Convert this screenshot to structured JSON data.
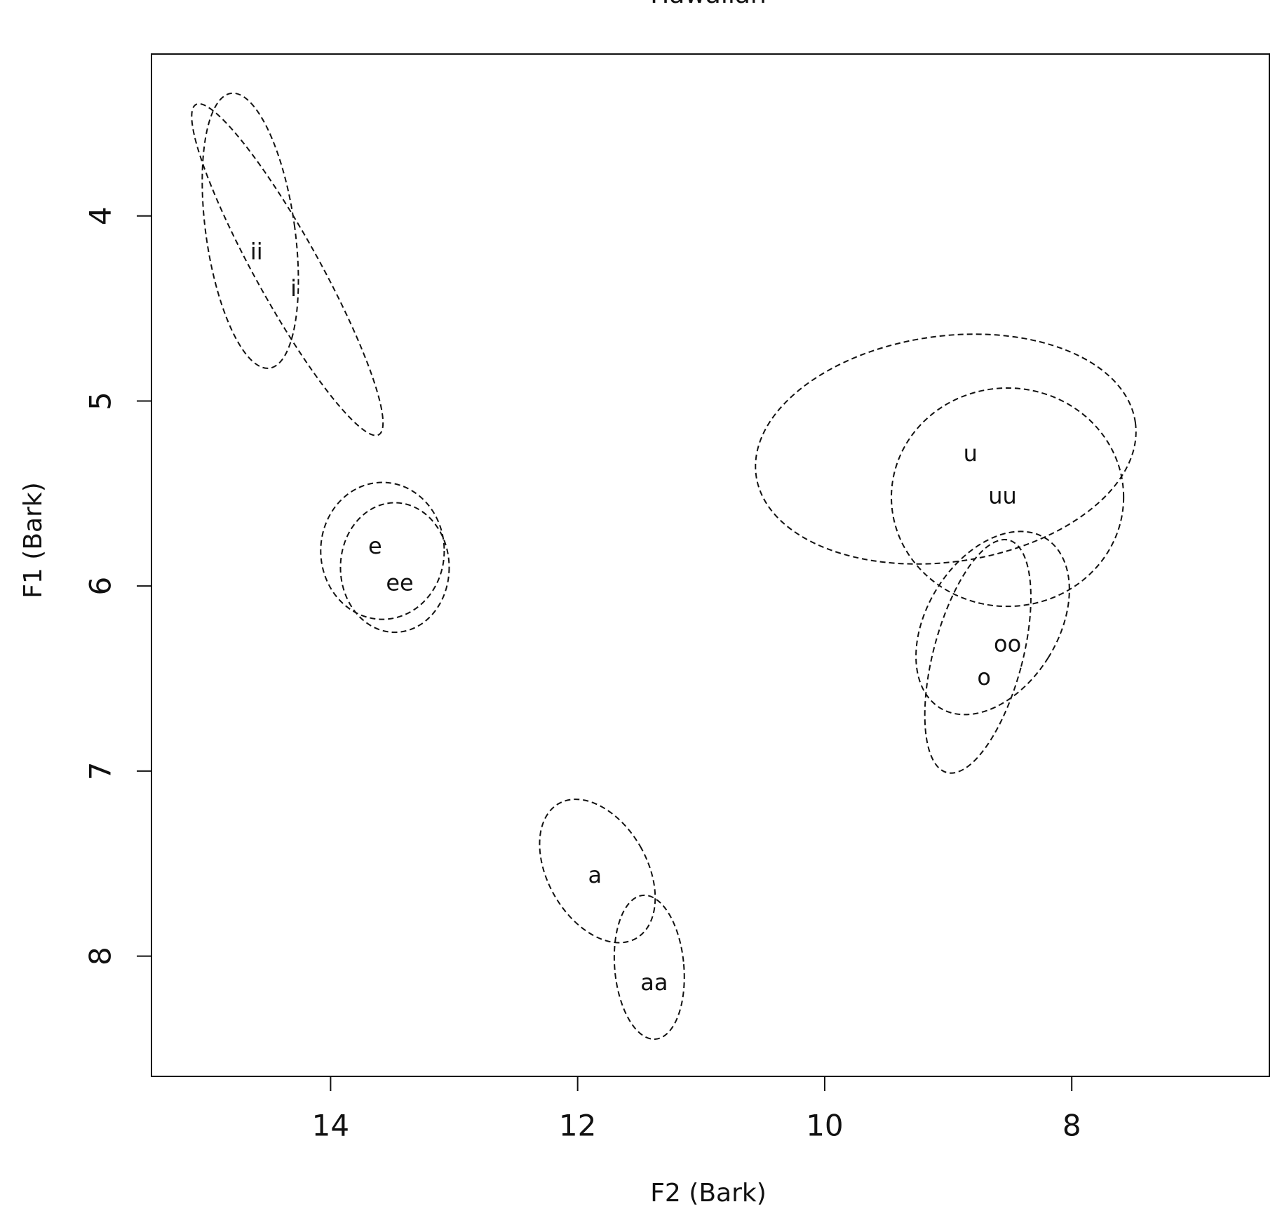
{
  "chart_data": {
    "type": "ellipse-scatter",
    "title": "Hawaiian",
    "x_label": "F2 (Bark)",
    "y_label": "F1 (Bark)",
    "xlim": [
      15.45,
      6.4
    ],
    "ylim": [
      8.65,
      3.125
    ],
    "xticks": [
      14,
      12,
      10,
      8
    ],
    "yticks": [
      4,
      5,
      6,
      7,
      8
    ],
    "x_reversed": true,
    "y_reversed": true,
    "color": "#111111",
    "series": [
      {
        "name": "ii",
        "x": 14.65,
        "y": 4.08,
        "rx": 0.36,
        "ry": 0.75,
        "angle": -8
      },
      {
        "name": "i",
        "x": 14.35,
        "y": 4.29,
        "rx": 0.26,
        "ry": 1.02,
        "angle": -29
      },
      {
        "name": "e",
        "x": 13.58,
        "y": 5.81,
        "rx": 0.5,
        "ry": 0.37,
        "angle": 0
      },
      {
        "name": "ee",
        "x": 13.48,
        "y": 5.9,
        "rx": 0.44,
        "ry": 0.35,
        "angle": 0
      },
      {
        "name": "u",
        "x": 9.02,
        "y": 5.26,
        "rx": 1.55,
        "ry": 0.61,
        "angle": -8
      },
      {
        "name": "uu",
        "x": 8.52,
        "y": 5.52,
        "rx": 0.94,
        "ry": 0.59,
        "angle": 0
      },
      {
        "name": "oo",
        "x": 8.64,
        "y": 6.2,
        "rx": 0.53,
        "ry": 0.54,
        "angle": 32
      },
      {
        "name": "o",
        "x": 8.76,
        "y": 6.38,
        "rx": 0.36,
        "ry": 0.65,
        "angle": 15
      },
      {
        "name": "a",
        "x": 11.84,
        "y": 7.54,
        "rx": 0.4,
        "ry": 0.42,
        "angle": -30
      },
      {
        "name": "aa",
        "x": 11.42,
        "y": 8.06,
        "rx": 0.28,
        "ry": 0.39,
        "angle": -5
      }
    ],
    "labels": [
      {
        "x": 14.6,
        "y": 4.2
      },
      {
        "x": 14.3,
        "y": 4.4
      },
      {
        "x": 13.64,
        "y": 5.79
      },
      {
        "x": 13.44,
        "y": 5.99
      },
      {
        "x": 8.82,
        "y": 5.29
      },
      {
        "x": 8.56,
        "y": 5.52
      },
      {
        "x": 8.52,
        "y": 6.32
      },
      {
        "x": 8.71,
        "y": 6.5
      },
      {
        "x": 11.86,
        "y": 7.57
      },
      {
        "x": 11.38,
        "y": 8.15
      }
    ]
  }
}
